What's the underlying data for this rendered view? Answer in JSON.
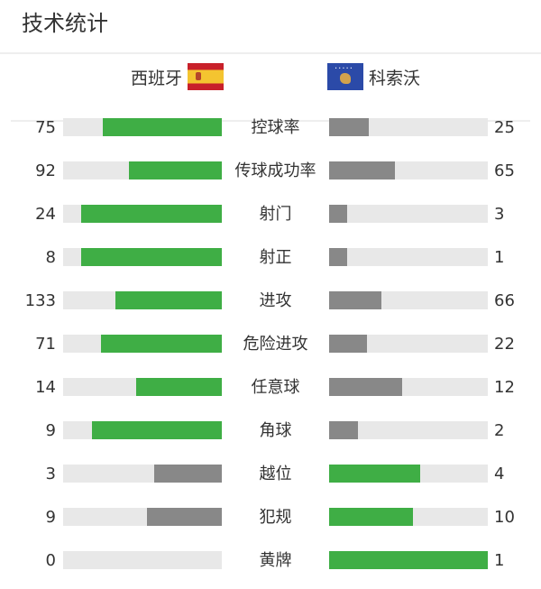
{
  "title": "技术统计",
  "teams": {
    "home": "西班牙",
    "away": "科索沃"
  },
  "colors": {
    "leader": "#3fae45",
    "trailer": "#888888",
    "track": "#e8e8e8"
  },
  "stats": [
    {
      "label": "控球率",
      "home": "75",
      "away": "25"
    },
    {
      "label": "传球成功率",
      "home": "92",
      "away": "65"
    },
    {
      "label": "射门",
      "home": "24",
      "away": "3"
    },
    {
      "label": "射正",
      "home": "8",
      "away": "1"
    },
    {
      "label": "进攻",
      "home": "133",
      "away": "66"
    },
    {
      "label": "危险进攻",
      "home": "71",
      "away": "22"
    },
    {
      "label": "任意球",
      "home": "14",
      "away": "12"
    },
    {
      "label": "角球",
      "home": "9",
      "away": "2"
    },
    {
      "label": "越位",
      "home": "3",
      "away": "4"
    },
    {
      "label": "犯规",
      "home": "9",
      "away": "10"
    },
    {
      "label": "黄牌",
      "home": "0",
      "away": "1"
    }
  ]
}
